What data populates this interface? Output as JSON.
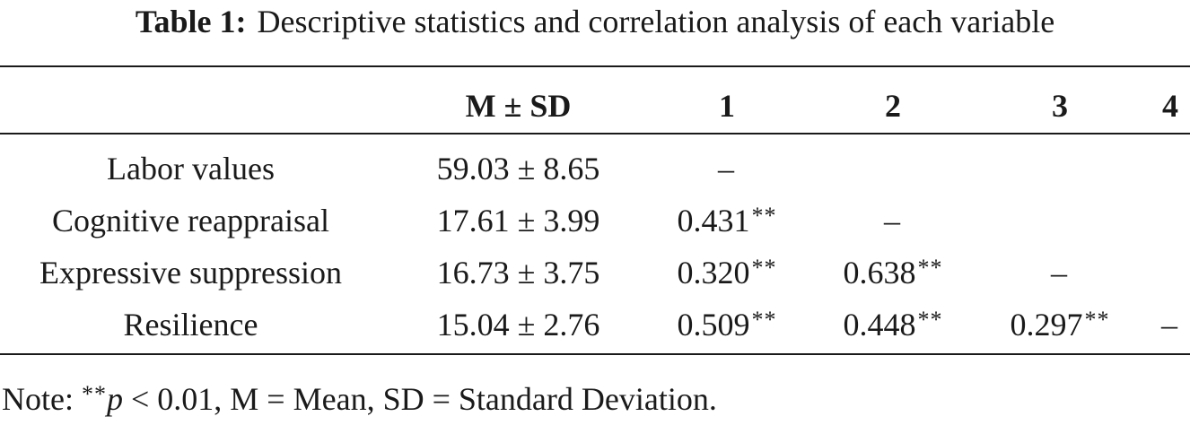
{
  "caption": {
    "label": "Table 1:",
    "text": "Descriptive statistics and correlation analysis of each variable"
  },
  "table": {
    "headers": [
      "",
      "M ± SD",
      "1",
      "2",
      "3",
      "4"
    ],
    "rows": [
      {
        "variable": "Labor values",
        "msd": "59.03 ± 8.65",
        "cells": [
          {
            "value": "–",
            "stars": ""
          },
          {
            "value": "",
            "stars": ""
          },
          {
            "value": "",
            "stars": ""
          },
          {
            "value": "",
            "stars": ""
          }
        ]
      },
      {
        "variable": "Cognitive reappraisal",
        "msd": "17.61 ± 3.99",
        "cells": [
          {
            "value": "0.431",
            "stars": "**"
          },
          {
            "value": "–",
            "stars": ""
          },
          {
            "value": "",
            "stars": ""
          },
          {
            "value": "",
            "stars": ""
          }
        ]
      },
      {
        "variable": "Expressive suppression",
        "msd": "16.73 ± 3.75",
        "cells": [
          {
            "value": "0.320",
            "stars": "**"
          },
          {
            "value": "0.638",
            "stars": "**"
          },
          {
            "value": "–",
            "stars": ""
          },
          {
            "value": "",
            "stars": ""
          }
        ]
      },
      {
        "variable": "Resilience",
        "msd": "15.04 ± 2.76",
        "cells": [
          {
            "value": "0.509",
            "stars": "**"
          },
          {
            "value": "0.448",
            "stars": "**"
          },
          {
            "value": "0.297",
            "stars": "**"
          },
          {
            "value": "–",
            "stars": ""
          }
        ]
      }
    ]
  },
  "note": {
    "prefix": "Note: ",
    "stars": "**",
    "p_symbol": "p",
    "text": " < 0.01, M = Mean, SD = Standard Deviation."
  }
}
